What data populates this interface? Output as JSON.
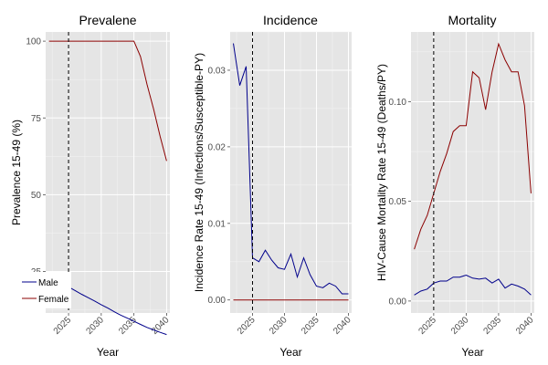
{
  "chart_data": [
    {
      "type": "line",
      "title": "Prevalene",
      "xlabel": "Year",
      "ylabel": "Prevalence 15-49 (%)",
      "xlim": [
        2021.5,
        2040.5
      ],
      "ylim": [
        11.5,
        103
      ],
      "xticks": [
        2025,
        2030,
        2035,
        2040
      ],
      "yticks": [
        25,
        50,
        75,
        100
      ],
      "ytick_labels": [
        "25",
        "50",
        "75",
        "100"
      ],
      "vline": 2025,
      "series": [
        {
          "name": "Male",
          "color": "#00008b",
          "x": [
            2025,
            2026,
            2027,
            2028,
            2029,
            2030,
            2031,
            2032,
            2033,
            2034,
            2035,
            2036,
            2037,
            2038,
            2039,
            2040
          ],
          "y": [
            20,
            18.8,
            17.6,
            16.5,
            15.4,
            14.2,
            13.1,
            11.9,
            10.8,
            9.8,
            8.8,
            7.8,
            6.8,
            6.0,
            5.2,
            4.5
          ]
        },
        {
          "name": "Female",
          "color": "#8b0000",
          "x": [
            2022,
            2023,
            2024,
            2025,
            2026,
            2027,
            2028,
            2029,
            2030,
            2031,
            2032,
            2033,
            2034,
            2035,
            2036,
            2037,
            2038,
            2039,
            2040
          ],
          "y": [
            100,
            100,
            100,
            100,
            100,
            100,
            100,
            100,
            100,
            100,
            100,
            100,
            100,
            100,
            95,
            86,
            78,
            69,
            61
          ]
        }
      ]
    },
    {
      "type": "line",
      "title": "Incidence",
      "xlabel": "Year",
      "ylabel": "Incidence Rate 15-49 (Infections/Susceptible-PY)",
      "xlim": [
        2021.5,
        2040.5
      ],
      "ylim": [
        -0.0017,
        0.035
      ],
      "xticks": [
        2025,
        2030,
        2035,
        2040
      ],
      "yticks": [
        0.0,
        0.01,
        0.02,
        0.03
      ],
      "ytick_labels": [
        "0.00",
        "0.01",
        "0.02",
        "0.03"
      ],
      "vline": 2025,
      "series": [
        {
          "name": "Male",
          "color": "#00008b",
          "x": [
            2022,
            2023,
            2024,
            2024.5,
            2025,
            2026,
            2027,
            2028,
            2029,
            2030,
            2031,
            2032,
            2033,
            2034,
            2035,
            2036,
            2037,
            2038,
            2039,
            2040
          ],
          "y": [
            0.0335,
            0.028,
            0.0305,
            0.018,
            0.0055,
            0.005,
            0.0065,
            0.0052,
            0.0042,
            0.004,
            0.006,
            0.003,
            0.0055,
            0.0033,
            0.0018,
            0.0016,
            0.0022,
            0.0018,
            0.0008,
            0.0008
          ]
        },
        {
          "name": "Female",
          "color": "#8b0000",
          "x": [
            2022,
            2040
          ],
          "y": [
            0.0,
            0.0
          ]
        }
      ]
    },
    {
      "type": "line",
      "title": "Mortality",
      "xlabel": "Year",
      "ylabel": "HIV-Cause Mortality Rate 15-49 (Deaths/PY)",
      "xlim": [
        2021.5,
        2040.5
      ],
      "ylim": [
        -0.006,
        0.135
      ],
      "xticks": [
        2025,
        2030,
        2035,
        2040
      ],
      "yticks": [
        0.0,
        0.05,
        0.1
      ],
      "ytick_labels": [
        "0.00",
        "0.05",
        "0.10"
      ],
      "vline": 2025,
      "series": [
        {
          "name": "Male",
          "color": "#00008b",
          "x": [
            2022,
            2023,
            2024,
            2025,
            2026,
            2027,
            2028,
            2029,
            2030,
            2031,
            2032,
            2033,
            2034,
            2035,
            2036,
            2037,
            2038,
            2039,
            2040
          ],
          "y": [
            0.003,
            0.005,
            0.006,
            0.009,
            0.01,
            0.01,
            0.012,
            0.012,
            0.013,
            0.0115,
            0.011,
            0.0115,
            0.009,
            0.011,
            0.0065,
            0.0085,
            0.0075,
            0.006,
            0.003
          ]
        },
        {
          "name": "Female",
          "color": "#8b0000",
          "x": [
            2022,
            2023,
            2024,
            2025,
            2026,
            2027,
            2028,
            2029,
            2030,
            2031,
            2032,
            2033,
            2034,
            2035,
            2036,
            2037,
            2038,
            2039,
            2040
          ],
          "y": [
            0.026,
            0.036,
            0.043,
            0.054,
            0.065,
            0.074,
            0.085,
            0.088,
            0.088,
            0.115,
            0.112,
            0.096,
            0.115,
            0.129,
            0.121,
            0.115,
            0.115,
            0.098,
            0.054
          ]
        }
      ]
    }
  ],
  "legend": {
    "items": [
      {
        "label": "Male",
        "color": "#00008b"
      },
      {
        "label": "Female",
        "color": "#8b0000"
      }
    ]
  }
}
